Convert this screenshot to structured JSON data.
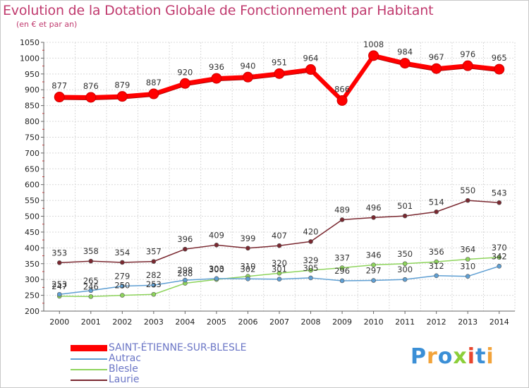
{
  "chart_data": {
    "type": "line",
    "title": "Evolution de la Dotation Globale de Fonctionnement par Habitant",
    "subtitle": "(en € et par an)",
    "x": [
      "2000",
      "2001",
      "2002",
      "2003",
      "2004",
      "2005",
      "2006",
      "2007",
      "2008",
      "2009",
      "2010",
      "2011",
      "2012",
      "2013",
      "2014"
    ],
    "ylim": [
      200,
      1050
    ],
    "yticks": [
      "200",
      "250",
      "300",
      "350",
      "400",
      "450",
      "500",
      "550",
      "600",
      "650",
      "700",
      "750",
      "800",
      "850",
      "900",
      "950",
      "1000",
      "1050"
    ],
    "grid": true,
    "legend_position": "bottom-left",
    "series": [
      {
        "name": "SAINT-ÉTIENNE-SUR-BLESLE",
        "color": "#ff0000",
        "values": [
          877,
          876,
          879,
          887,
          920,
          936,
          940,
          951,
          964,
          866,
          1008,
          984,
          967,
          976,
          965
        ],
        "labels": [
          "877",
          "876",
          "879",
          "887",
          "920",
          "936",
          "940",
          "951",
          "964",
          "866",
          "1008",
          "984",
          "967",
          "976",
          "965"
        ]
      },
      {
        "name": "Autrac",
        "color": "#5f9fd3",
        "values": [
          253,
          265,
          279,
          282,
          298,
          303,
          302,
          301,
          305,
          296,
          297,
          300,
          312,
          310,
          342
        ],
        "labels": [
          "253",
          "265",
          "279",
          "282",
          "298",
          "303",
          "302",
          "301",
          "305",
          "296",
          "297",
          "300",
          "312",
          "310",
          "342"
        ]
      },
      {
        "name": "Blesle",
        "color": "#8ed45c",
        "values": [
          247,
          246,
          250,
          253,
          288,
          300,
          310,
          320,
          329,
          337,
          346,
          350,
          356,
          364,
          370
        ],
        "labels": [
          "247",
          "246",
          "250",
          "253",
          "288",
          "300",
          "310",
          "320",
          "329",
          "337",
          "346",
          "350",
          "356",
          "364",
          "370"
        ]
      },
      {
        "name": "Laurie",
        "color": "#7a2830",
        "values": [
          353,
          358,
          354,
          357,
          396,
          409,
          399,
          407,
          420,
          489,
          496,
          501,
          514,
          550,
          543
        ],
        "labels": [
          "353",
          "358",
          "354",
          "357",
          "396",
          "409",
          "399",
          "407",
          "420",
          "489",
          "496",
          "501",
          "514",
          "550",
          "543"
        ]
      }
    ]
  },
  "logo": {
    "text": "Proxiti",
    "letters": [
      "P",
      "r",
      "o",
      "x",
      "i",
      "t",
      "i"
    ],
    "colors": [
      "#3b8fd6",
      "#f2a33a",
      "#3b8fd6",
      "#8ccf3a",
      "#e8462e",
      "#3b8fd6",
      "#f2a33a"
    ]
  }
}
